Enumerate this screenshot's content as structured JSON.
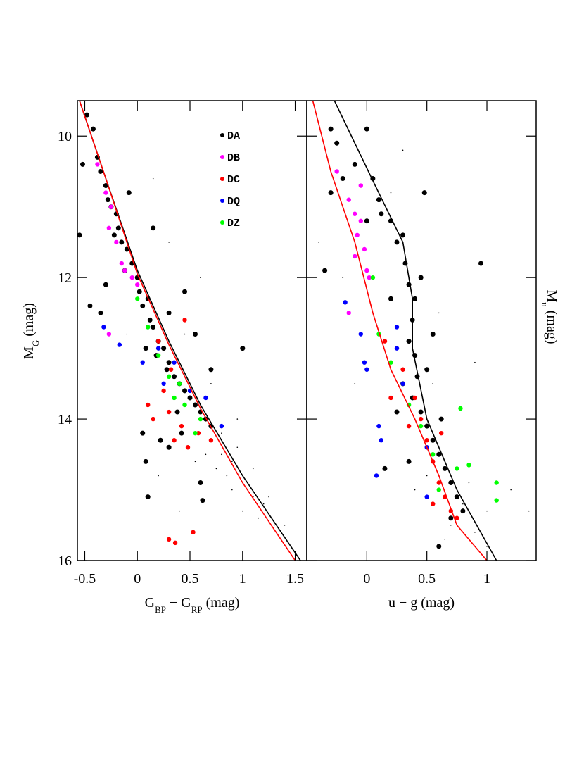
{
  "chart_data": [
    {
      "type": "scatter",
      "xlabel": [
        {
          "text": "G"
        },
        {
          "text": "BP",
          "sub": true
        },
        {
          "text": " − G"
        },
        {
          "text": "RP",
          "sub": true
        },
        {
          "text": " (mag)"
        }
      ],
      "ylabel": [
        {
          "text": "M"
        },
        {
          "text": "G",
          "sub": true
        },
        {
          "text": " (mag)"
        }
      ],
      "xlim": [
        -0.57,
        1.61
      ],
      "ylim": [
        9.5,
        16
      ],
      "y_inverted": true,
      "xticks": [
        -0.5,
        0,
        0.5,
        1,
        1.5
      ],
      "yticks": [
        10,
        12,
        14,
        16
      ],
      "show_ytick_labels": true,
      "legend": true,
      "series": [
        {
          "color": "#000000",
          "size": 0.8,
          "x": [
            0.6,
            0.7,
            0.8,
            0.9,
            1.0,
            1.1,
            1.2,
            0.85,
            0.95,
            1.05,
            1.15,
            1.3,
            0.75,
            0.65,
            0.9,
            1.0,
            0.8,
            1.25,
            0.55,
            0.95,
            1.1,
            0.7,
            0.45,
            0.3,
            0.15,
            -0.1,
            0.6,
            1.4,
            0.4,
            0.2
          ],
          "values": [
            14.0,
            14.3,
            14.5,
            14.6,
            14.9,
            15.1,
            15.2,
            14.8,
            14.4,
            15.0,
            15.4,
            15.5,
            14.7,
            14.5,
            15.0,
            15.3,
            14.2,
            15.1,
            14.6,
            14.0,
            14.7,
            13.5,
            12.8,
            11.5,
            10.6,
            12.8,
            12.0,
            15.5,
            15.3,
            14.8
          ]
        },
        {
          "name": "DA",
          "color": "#000000",
          "size": 3.5,
          "x": [
            -0.48,
            -0.42,
            -0.38,
            -0.35,
            -0.3,
            -0.28,
            -0.25,
            -0.2,
            -0.22,
            -0.18,
            -0.15,
            -0.1,
            -0.12,
            -0.05,
            0.0,
            0.02,
            0.05,
            0.1,
            0.12,
            0.15,
            0.2,
            0.18,
            0.25,
            0.28,
            0.3,
            0.35,
            0.4,
            0.45,
            0.5,
            0.55,
            0.6,
            0.65,
            0.7,
            0.38,
            0.42,
            0.3,
            0.22,
            -0.3,
            -0.35,
            -0.55,
            -0.45,
            0.05,
            0.08,
            0.1,
            0.6,
            0.62,
            1.0,
            0.15,
            0.45,
            0.55,
            -0.08,
            -0.52,
            0.3,
            0.08,
            0.7
          ],
          "values": [
            9.7,
            9.9,
            10.3,
            10.5,
            10.7,
            10.9,
            11.0,
            11.1,
            11.4,
            11.3,
            11.5,
            11.6,
            11.9,
            11.8,
            12.0,
            12.2,
            12.4,
            12.3,
            12.6,
            12.7,
            12.9,
            13.1,
            13.0,
            13.3,
            13.2,
            13.4,
            13.5,
            13.6,
            13.7,
            13.8,
            13.9,
            14.0,
            14.1,
            13.9,
            14.2,
            14.4,
            14.3,
            12.1,
            12.5,
            11.4,
            12.4,
            14.2,
            14.6,
            15.1,
            14.9,
            15.15,
            13.0,
            11.3,
            12.2,
            12.8,
            10.8,
            10.4,
            12.5,
            13.0,
            13.3
          ]
        },
        {
          "name": "DB",
          "color": "#ff00ff",
          "size": 3.2,
          "x": [
            -0.38,
            -0.3,
            -0.25,
            -0.27,
            -0.2,
            -0.15,
            -0.12,
            -0.05,
            0.0,
            -0.27
          ],
          "values": [
            10.4,
            10.8,
            11.0,
            11.3,
            11.5,
            11.8,
            11.9,
            12.0,
            12.1,
            12.8
          ]
        },
        {
          "name": "DC",
          "color": "#ff0000",
          "size": 3.2,
          "x": [
            0.3,
            0.36,
            0.53,
            0.2,
            0.25,
            0.3,
            0.42,
            0.35,
            0.48,
            0.58,
            0.15,
            0.1,
            0.45,
            0.7,
            0.32
          ],
          "values": [
            15.7,
            15.75,
            15.6,
            12.9,
            13.6,
            13.9,
            14.1,
            14.3,
            14.4,
            14.2,
            14.0,
            13.8,
            12.6,
            14.3,
            13.3
          ]
        },
        {
          "name": "DQ",
          "color": "#0000ff",
          "size": 3.2,
          "x": [
            -0.32,
            -0.17,
            0.05,
            0.1,
            0.2,
            0.35,
            0.5,
            0.65,
            0.8,
            0.25
          ],
          "values": [
            12.7,
            12.95,
            13.2,
            12.7,
            13.0,
            13.2,
            13.6,
            13.7,
            14.1,
            13.5
          ]
        },
        {
          "name": "DZ",
          "color": "#00ff00",
          "size": 3.2,
          "x": [
            0.0,
            0.1,
            0.2,
            0.3,
            0.4,
            0.45,
            0.6,
            0.55,
            0.35
          ],
          "values": [
            12.3,
            12.7,
            13.1,
            13.4,
            13.5,
            13.8,
            14.0,
            14.2,
            13.7
          ]
        },
        {
          "kind": "line",
          "color": "#000000",
          "x": [
            -0.55,
            -0.3,
            0.0,
            0.3,
            0.6,
            1.0,
            1.55
          ],
          "values": [
            9.5,
            10.6,
            11.9,
            12.9,
            13.8,
            14.8,
            16.0
          ]
        },
        {
          "kind": "line",
          "color": "#ff0000",
          "x": [
            -0.55,
            -0.3,
            0.0,
            0.3,
            0.6,
            1.0,
            1.5
          ],
          "values": [
            9.5,
            10.6,
            11.95,
            12.95,
            13.85,
            14.9,
            16.0
          ]
        }
      ]
    },
    {
      "type": "scatter",
      "xlabel": [
        {
          "text": "u − g (mag)"
        }
      ],
      "ylabel": [
        {
          "text": "M"
        },
        {
          "text": "u",
          "sub": true
        },
        {
          "text": " (mag)"
        }
      ],
      "xlim": [
        -0.5,
        1.41
      ],
      "ylim": [
        9.5,
        16
      ],
      "y_inverted": true,
      "xticks": [
        0,
        0.5,
        1
      ],
      "yticks": [
        10,
        12,
        14,
        16
      ],
      "show_ytick_labels": false,
      "legend": false,
      "series": [
        {
          "color": "#000000",
          "size": 0.8,
          "x": [
            0.5,
            0.7,
            0.8,
            0.9,
            1.0,
            0.65,
            0.85,
            0.4,
            -0.1,
            -0.2,
            0.9,
            1.2,
            0.3,
            -0.4,
            0.6,
            1.0,
            0.75,
            0.55,
            1.35,
            0.2
          ],
          "values": [
            14.8,
            15.5,
            15.2,
            15.6,
            15.8,
            15.7,
            14.9,
            15.0,
            13.5,
            12.0,
            13.2,
            15.0,
            10.2,
            11.5,
            12.5,
            15.3,
            16.0,
            13.5,
            15.3,
            10.8
          ]
        },
        {
          "name": "DA",
          "color": "#000000",
          "size": 3.5,
          "x": [
            -0.3,
            -0.25,
            -0.2,
            -0.1,
            0.0,
            0.05,
            0.1,
            0.12,
            0.2,
            0.25,
            0.3,
            0.32,
            0.35,
            0.4,
            0.38,
            0.35,
            0.4,
            0.42,
            0.38,
            0.45,
            0.5,
            0.55,
            0.6,
            0.65,
            0.7,
            0.75,
            0.8,
            0.3,
            0.25,
            0.5,
            0.55,
            0.45,
            0.2,
            -0.3,
            -0.35,
            0.15,
            0.6,
            0.95,
            0.48,
            0.0,
            0.62,
            0.35,
            0.7
          ],
          "values": [
            9.9,
            10.1,
            10.6,
            10.4,
            9.9,
            10.6,
            10.9,
            11.1,
            11.2,
            11.5,
            11.4,
            11.8,
            12.1,
            12.3,
            12.6,
            12.9,
            13.1,
            13.4,
            13.7,
            13.9,
            14.1,
            14.3,
            14.5,
            14.7,
            14.9,
            15.1,
            15.3,
            13.5,
            13.9,
            13.3,
            12.8,
            12.0,
            12.3,
            10.8,
            11.9,
            14.7,
            15.8,
            11.8,
            10.8,
            11.2,
            14.0,
            14.6,
            15.4
          ]
        },
        {
          "name": "DB",
          "color": "#ff00ff",
          "size": 3.2,
          "x": [
            -0.25,
            -0.15,
            -0.1,
            -0.05,
            -0.08,
            -0.02,
            0.0,
            0.02,
            -0.1,
            -0.15,
            -0.05
          ],
          "values": [
            10.5,
            10.9,
            11.1,
            11.2,
            11.4,
            11.6,
            11.9,
            12.0,
            11.7,
            12.5,
            10.7
          ]
        },
        {
          "name": "DC",
          "color": "#ff0000",
          "size": 3.2,
          "x": [
            0.3,
            0.4,
            0.45,
            0.5,
            0.55,
            0.6,
            0.65,
            0.7,
            0.75,
            0.35,
            0.2,
            0.15,
            0.55,
            0.62
          ],
          "values": [
            13.3,
            13.7,
            14.0,
            14.3,
            14.6,
            14.9,
            15.1,
            15.3,
            15.4,
            14.1,
            13.7,
            12.9,
            15.2,
            14.2
          ]
        },
        {
          "name": "DQ",
          "color": "#0000ff",
          "size": 3.2,
          "x": [
            -0.18,
            -0.05,
            -0.02,
            0.0,
            0.1,
            0.12,
            0.08,
            0.25,
            0.3,
            0.5,
            0.5,
            0.25
          ],
          "values": [
            12.35,
            12.8,
            13.2,
            13.3,
            14.1,
            14.3,
            14.8,
            13.0,
            13.5,
            14.4,
            15.1,
            12.7
          ]
        },
        {
          "name": "DZ",
          "color": "#00ff00",
          "size": 3.2,
          "x": [
            0.05,
            0.1,
            0.2,
            0.35,
            0.45,
            0.55,
            0.6,
            0.75,
            0.85,
            1.08,
            1.08,
            0.78
          ],
          "values": [
            12.0,
            12.8,
            13.2,
            13.8,
            14.1,
            14.5,
            15.0,
            14.7,
            14.65,
            14.9,
            15.15,
            13.85
          ]
        },
        {
          "kind": "line",
          "color": "#000000",
          "x": [
            -0.27,
            0.07,
            0.3,
            0.38,
            0.38,
            0.5,
            0.75,
            1.08
          ],
          "values": [
            9.5,
            10.7,
            11.5,
            12.3,
            13.0,
            14.0,
            15.0,
            16.0
          ]
        },
        {
          "kind": "line",
          "color": "#ff0000",
          "x": [
            -0.45,
            -0.3,
            -0.1,
            0.05,
            0.2,
            0.4,
            0.6,
            0.75,
            1.0
          ],
          "values": [
            9.5,
            10.5,
            11.5,
            12.5,
            13.3,
            14.0,
            14.8,
            15.5,
            16.0
          ]
        }
      ]
    }
  ]
}
